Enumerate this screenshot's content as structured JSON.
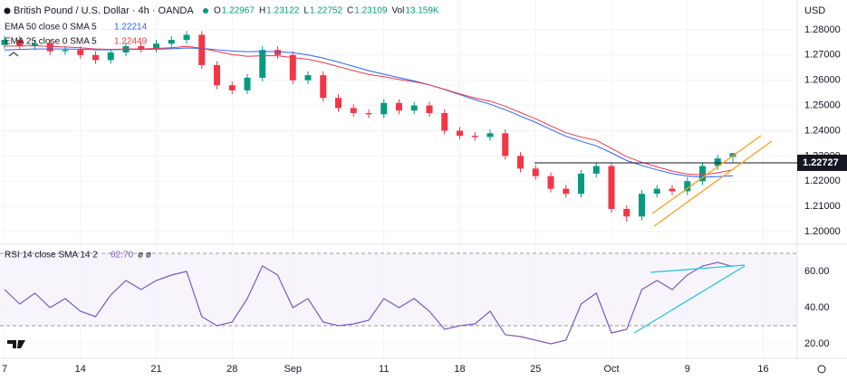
{
  "chart_data": [
    {
      "type": "candlestick",
      "title": "British Pound / U.S. Dollar · 4h · OANDA",
      "ohlc_labels": [
        "O",
        "H",
        "L",
        "C"
      ],
      "volume_label": "Vol",
      "volume": "13.159K",
      "currency": "USD",
      "open": [
        1.274,
        1.276,
        1.2735,
        1.2745,
        1.2715,
        1.272,
        1.27,
        1.268,
        1.271,
        1.2735,
        1.2725,
        1.2745,
        1.276,
        1.278,
        1.266,
        1.258,
        1.256,
        1.261,
        1.272,
        1.27,
        1.26,
        1.262,
        1.253,
        1.249,
        1.247,
        1.2465,
        1.251,
        1.248,
        1.25,
        1.247,
        1.24,
        1.238,
        1.2375,
        1.239,
        1.23,
        1.225,
        1.222,
        1.217,
        1.215,
        1.223,
        1.226,
        1.209,
        1.206,
        1.215,
        1.217,
        1.216,
        1.22,
        1.226,
        1.22967
      ],
      "high": [
        1.2775,
        1.2775,
        1.276,
        1.276,
        1.2735,
        1.2735,
        1.2715,
        1.2725,
        1.275,
        1.275,
        1.276,
        1.2775,
        1.2795,
        1.2795,
        1.2675,
        1.2595,
        1.2625,
        1.2735,
        1.2735,
        1.2715,
        1.2635,
        1.2635,
        1.2545,
        1.2505,
        1.2485,
        1.2525,
        1.2525,
        1.2515,
        1.2515,
        1.2485,
        1.2415,
        1.2395,
        1.2405,
        1.2405,
        1.2315,
        1.2265,
        1.2235,
        1.2185,
        1.2245,
        1.2275,
        1.2275,
        1.2105,
        1.2165,
        1.2185,
        1.2185,
        1.2215,
        1.2275,
        1.2305,
        1.23122
      ],
      "low": [
        1.2725,
        1.272,
        1.272,
        1.27,
        1.27,
        1.2685,
        1.2665,
        1.2665,
        1.2695,
        1.271,
        1.271,
        1.273,
        1.2745,
        1.2645,
        1.2565,
        1.2545,
        1.2545,
        1.2595,
        1.2685,
        1.2585,
        1.2585,
        1.2515,
        1.2475,
        1.2455,
        1.245,
        1.245,
        1.2465,
        1.2465,
        1.2455,
        1.2385,
        1.2365,
        1.236,
        1.236,
        1.2285,
        1.2235,
        1.2205,
        1.2155,
        1.2135,
        1.2135,
        1.2215,
        1.2075,
        1.204,
        1.2045,
        1.2135,
        1.2145,
        1.2145,
        1.2185,
        1.2245,
        1.22752
      ],
      "close": [
        1.276,
        1.2735,
        1.2745,
        1.2715,
        1.272,
        1.27,
        1.268,
        1.271,
        1.2735,
        1.2725,
        1.2745,
        1.276,
        1.278,
        1.266,
        1.258,
        1.256,
        1.261,
        1.272,
        1.27,
        1.26,
        1.262,
        1.253,
        1.249,
        1.247,
        1.2465,
        1.251,
        1.248,
        1.25,
        1.247,
        1.24,
        1.238,
        1.2375,
        1.239,
        1.23,
        1.225,
        1.222,
        1.217,
        1.215,
        1.223,
        1.226,
        1.209,
        1.206,
        1.215,
        1.217,
        1.216,
        1.22,
        1.226,
        1.229,
        1.23109
      ],
      "up_color": "#089981",
      "down_color": "#f23645",
      "series": [
        {
          "name": "EMA 50 close 0 SMA 5",
          "color": "#2962ff",
          "values": [
            1.272,
            1.2722,
            1.2724,
            1.2724,
            1.2724,
            1.2723,
            1.2721,
            1.2721,
            1.2722,
            1.2722,
            1.2723,
            1.2725,
            1.2728,
            1.2726,
            1.2721,
            1.2716,
            1.2713,
            1.2714,
            1.2713,
            1.2709,
            1.27,
            1.2688,
            1.2672,
            1.2655,
            1.2638,
            1.2624,
            1.261,
            1.2597,
            1.2582,
            1.2563,
            1.2543,
            1.2523,
            1.2505,
            1.2483,
            1.2458,
            1.2433,
            1.2405,
            1.2378,
            1.2358,
            1.234,
            1.2312,
            1.2282,
            1.2262,
            1.2245,
            1.223,
            1.222,
            1.2216,
            1.2218,
            1.22214
          ]
        },
        {
          "name": "EMA 25 close 0 SMA 5",
          "color": "#f23645",
          "values": [
            1.2735,
            1.2736,
            1.2737,
            1.2734,
            1.2732,
            1.2729,
            1.2724,
            1.2722,
            1.2724,
            1.2724,
            1.2726,
            1.2729,
            1.2734,
            1.2727,
            1.2714,
            1.2702,
            1.2695,
            1.2697,
            1.2697,
            1.269,
            1.2683,
            1.267,
            1.2654,
            1.2638,
            1.2623,
            1.2614,
            1.2603,
            1.2594,
            1.2582,
            1.2564,
            1.2546,
            1.253,
            1.2517,
            1.2497,
            1.2472,
            1.2447,
            1.2419,
            1.2392,
            1.2375,
            1.2362,
            1.233,
            1.2297,
            1.2275,
            1.2257,
            1.224,
            1.2228,
            1.2225,
            1.2233,
            1.22449
          ]
        }
      ],
      "last_price": 1.22727,
      "ylim": [
        1.1957,
        1.2918
      ],
      "yticks": [
        {
          "value": 1.28,
          "label": "1.28000"
        },
        {
          "value": 1.27,
          "label": "1.27000"
        },
        {
          "value": 1.26,
          "label": "1.26000"
        },
        {
          "value": 1.25,
          "label": "1.25000"
        },
        {
          "value": 1.24,
          "label": "1.24000"
        },
        {
          "value": 1.23,
          "label": "1.23000"
        },
        {
          "value": 1.22,
          "label": "1.22000"
        },
        {
          "value": 1.21,
          "label": "1.21000"
        },
        {
          "value": 1.2,
          "label": "1.20000"
        }
      ],
      "xticks": [
        {
          "value": 0,
          "label": "7"
        },
        {
          "value": 5,
          "label": "14"
        },
        {
          "value": 10,
          "label": "21"
        },
        {
          "value": 15,
          "label": "28"
        },
        {
          "value": 19,
          "label": "Sep"
        },
        {
          "value": 25,
          "label": "11"
        },
        {
          "value": 30,
          "label": "18"
        },
        {
          "value": 35,
          "label": "25"
        },
        {
          "value": 40,
          "label": "Oct"
        },
        {
          "value": 45,
          "label": "9"
        },
        {
          "value": 50,
          "label": "16"
        }
      ]
    },
    {
      "type": "line",
      "title": "RSI 14 close SMA 14 2",
      "legend_value": "62.70",
      "legend_extra": "ø ø",
      "color": "#7e57c2",
      "values": [
        50,
        42,
        48,
        40,
        45,
        38,
        35,
        47,
        55,
        50,
        55,
        58,
        60,
        35,
        30,
        32,
        45,
        63,
        58,
        40,
        45,
        32,
        30,
        31,
        33,
        45,
        40,
        45,
        38,
        28,
        30,
        31,
        38,
        25,
        24,
        22,
        20,
        22,
        42,
        48,
        26,
        28,
        50,
        55,
        50,
        58,
        63,
        65,
        62.7
      ],
      "bands": [
        30,
        70
      ],
      "ylim": [
        12,
        72
      ],
      "yticks": [
        {
          "value": 60,
          "label": "60.00"
        },
        {
          "value": 40,
          "label": "40.00"
        },
        {
          "value": 20,
          "label": "20.00"
        }
      ]
    }
  ]
}
